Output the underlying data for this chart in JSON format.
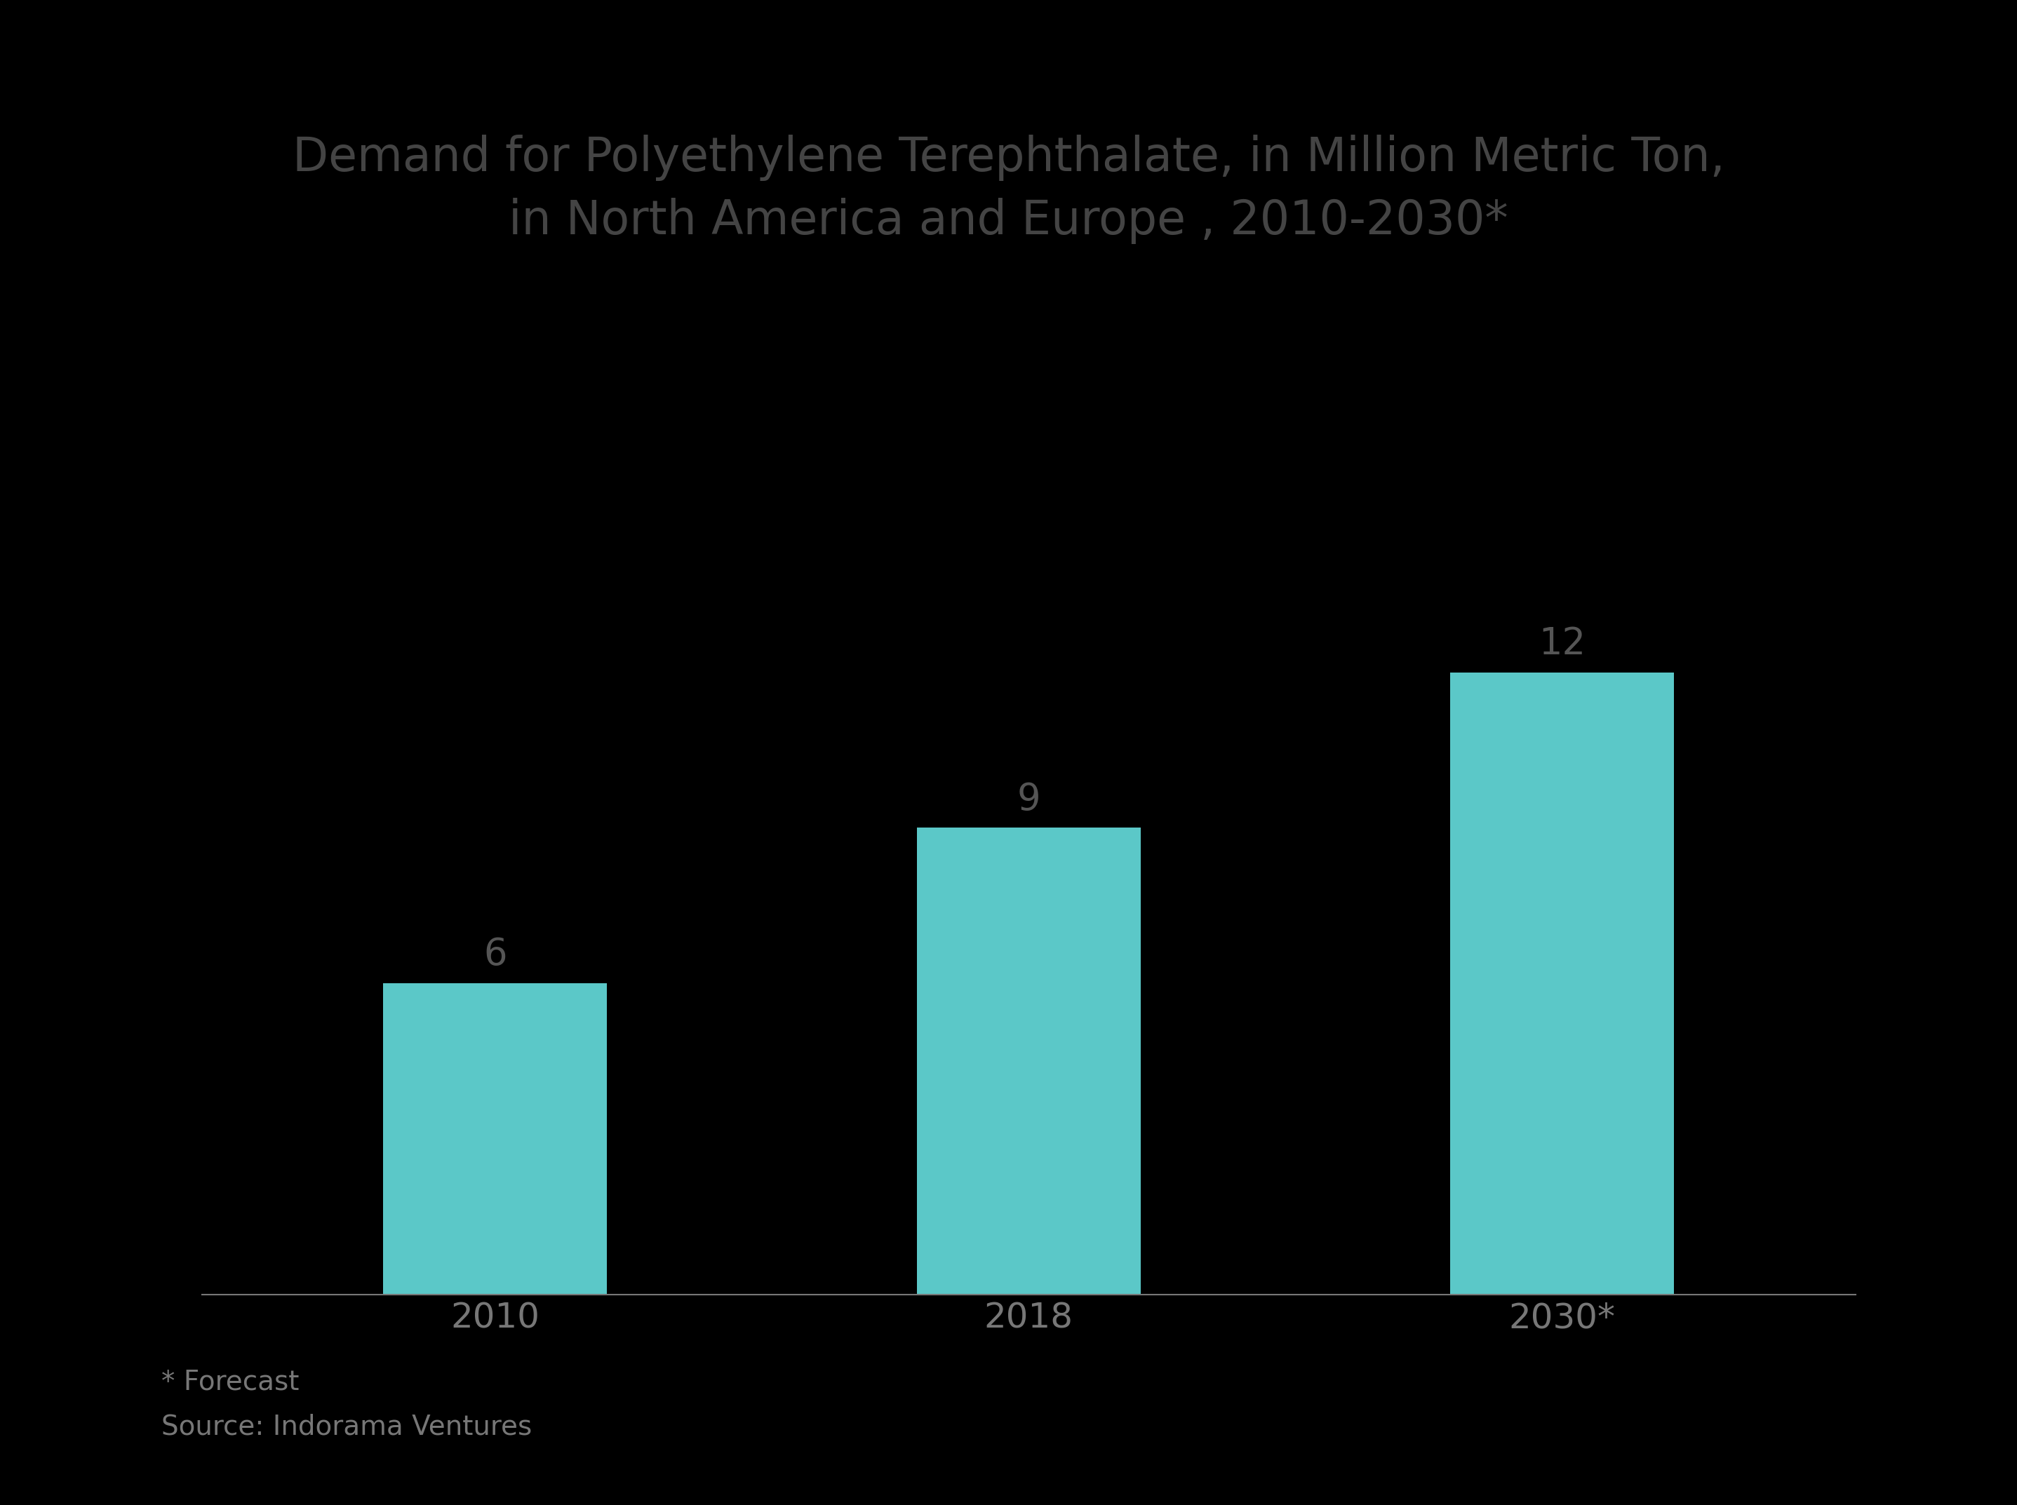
{
  "title_line1": "Demand for Polyethylene Terephthalate, in Million Metric Ton,",
  "title_line2": "in North America and Europe , 2010-2030*",
  "categories": [
    "2010",
    "2018",
    "2030*"
  ],
  "values": [
    6,
    9,
    12
  ],
  "bar_color": "#5BC8C8",
  "bar_width": 0.42,
  "background_color": "#000000",
  "title_color": "#444444",
  "label_color": "#555555",
  "tick_color": "#777777",
  "axis_line_color": "#777777",
  "value_label_fontsize": 38,
  "title_fontsize": 48,
  "tick_fontsize": 36,
  "footnote1": "* Forecast",
  "footnote2": "Source: Indorama Ventures",
  "footnote_color": "#777777",
  "footnote_fontsize": 28,
  "ylim": [
    0,
    18
  ]
}
